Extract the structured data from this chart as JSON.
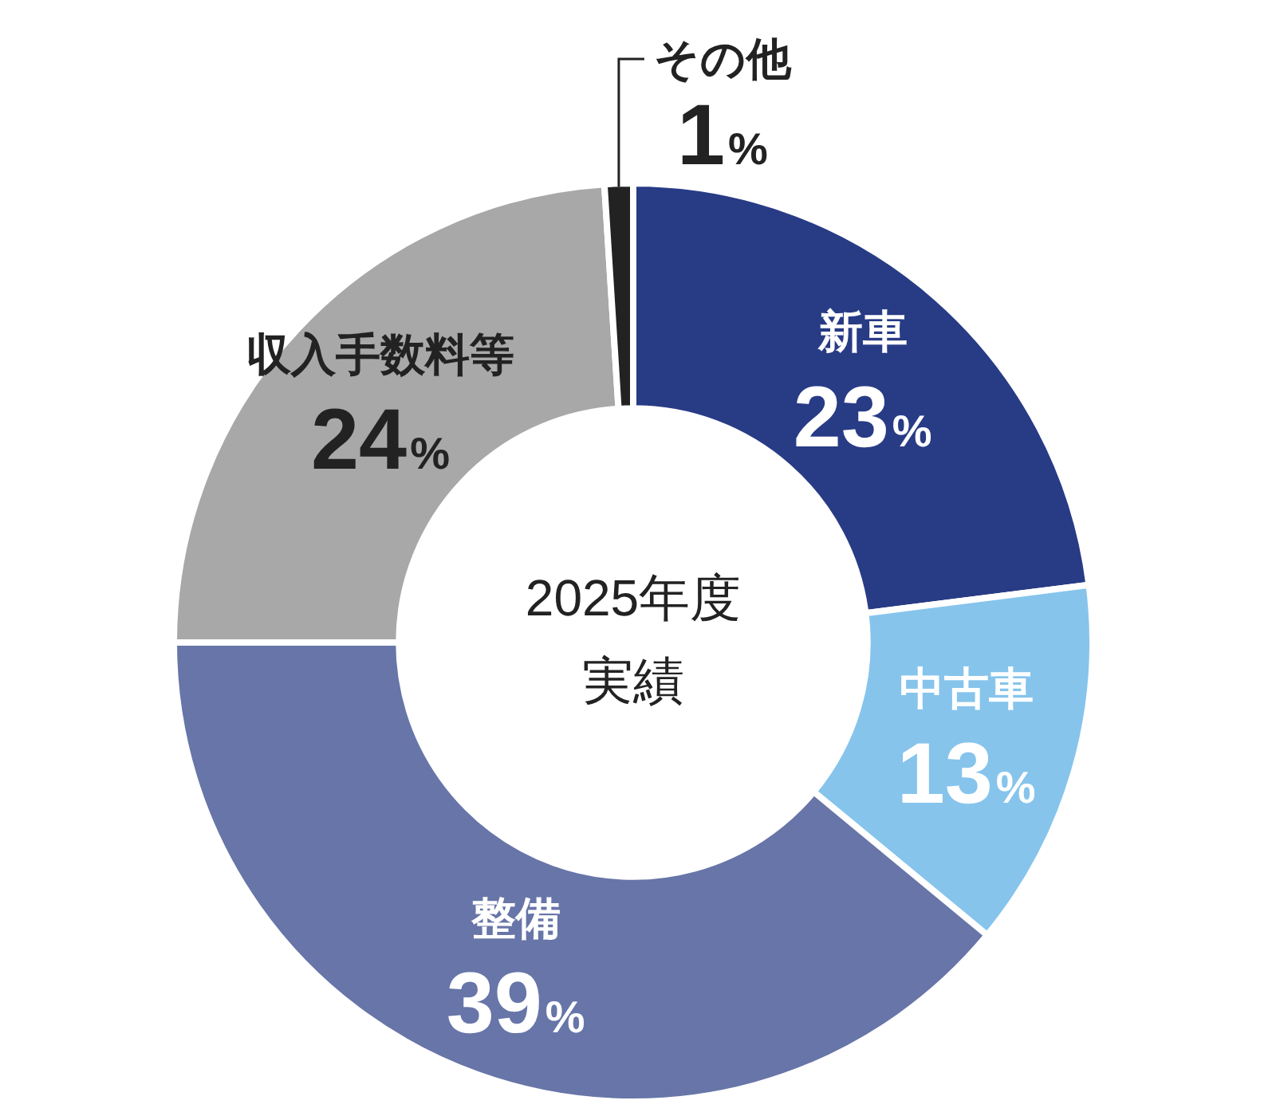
{
  "chart_data": {
    "type": "donut",
    "title": "2025年度実績",
    "categories": [
      "新車",
      "中古車",
      "整備",
      "収入手数料等",
      "その他"
    ],
    "values": [
      23,
      13,
      39,
      24,
      1
    ],
    "colors": [
      "#283b85",
      "#86c4ec",
      "#6775a8",
      "#a8a8a8",
      "#222222"
    ],
    "value_labels": [
      "23%",
      "13%",
      "39%",
      "24%",
      "1%"
    ],
    "legend": false
  }
}
